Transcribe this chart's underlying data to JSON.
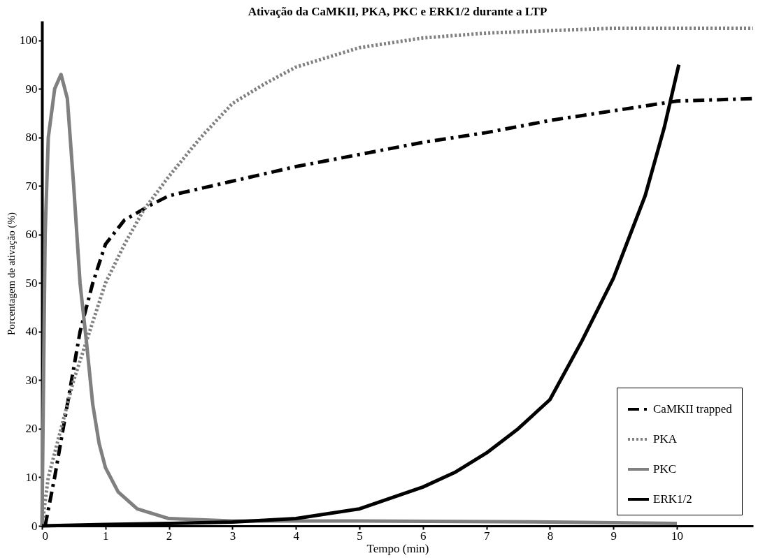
{
  "chart_data": {
    "type": "line",
    "title": "Ativação da CaMKII,  PKA, PKC e ERK1/2 durante a LTP",
    "xlabel": "Tempo (min)",
    "ylabel": "Porcentagem de ativação (%)",
    "xlim": [
      0,
      11.2
    ],
    "xticks": [
      0,
      1,
      2,
      3,
      4,
      5,
      6,
      7,
      8,
      9,
      10
    ],
    "ylim": [
      0,
      104
    ],
    "yticks": [
      0,
      10,
      20,
      30,
      40,
      50,
      60,
      70,
      80,
      90,
      100
    ],
    "grid": false,
    "legend": "bottom right",
    "marker": "none",
    "series": [
      {
        "name": "CaMKII trapped",
        "color": "#000000",
        "line_style": "dashed",
        "x": [
          0.05,
          0.2,
          0.4,
          0.6,
          0.8,
          1.0,
          1.3,
          1.7,
          2,
          3,
          4,
          5,
          6,
          7,
          8,
          9,
          10,
          11.2
        ],
        "values": [
          0,
          10,
          25,
          40,
          50,
          58,
          63,
          66,
          68,
          71,
          74,
          76.5,
          79,
          81,
          83.5,
          85.5,
          87.5,
          88
        ]
      },
      {
        "name": "PKA",
        "color": "#808080",
        "line_style": "dotted",
        "x": [
          0,
          0.1,
          0.3,
          0.5,
          0.8,
          1,
          1.3,
          1.6,
          2,
          2.5,
          3,
          3.5,
          4,
          5,
          6,
          7,
          8,
          9,
          10,
          11.2
        ],
        "values": [
          0,
          10,
          20,
          30,
          42,
          50,
          58,
          65,
          72,
          80,
          87,
          91,
          94.5,
          98.5,
          100.5,
          101.5,
          102,
          102.5,
          102.5,
          102.5
        ]
      },
      {
        "name": "PKC",
        "color": "#808080",
        "line_style": "solid",
        "x": [
          0,
          0.05,
          0.1,
          0.2,
          0.3,
          0.4,
          0.5,
          0.6,
          0.7,
          0.8,
          0.9,
          1,
          1.2,
          1.5,
          2,
          3,
          5,
          8,
          10
        ],
        "values": [
          0,
          60,
          80,
          90,
          93,
          88,
          70,
          50,
          38,
          25,
          17,
          12,
          7,
          3.5,
          1.5,
          1,
          1,
          0.8,
          0.5
        ]
      },
      {
        "name": "ERK1/2",
        "color": "#000000",
        "line_style": "solid",
        "x": [
          0,
          1,
          2,
          3,
          4,
          5,
          6,
          6.5,
          7,
          7.5,
          8,
          8.5,
          9,
          9.5,
          9.8,
          10.03
        ],
        "values": [
          0,
          0.3,
          0.5,
          0.8,
          1.5,
          3.5,
          8,
          11,
          15,
          20,
          26,
          38,
          51,
          68,
          82,
          95
        ]
      }
    ]
  }
}
